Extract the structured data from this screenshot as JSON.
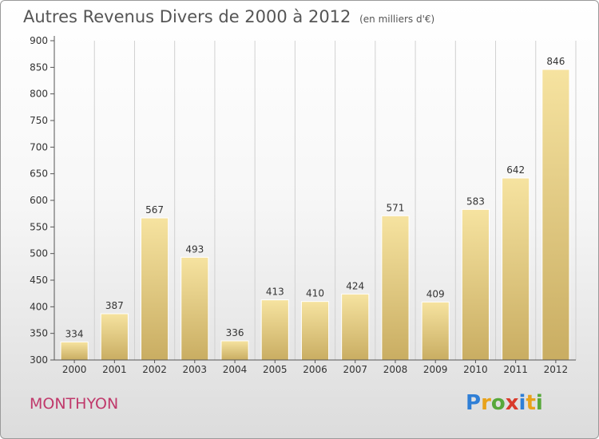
{
  "title": "Autres Revenus Divers de 2000 à 2012",
  "subtitle": "(en milliers d'€)",
  "commune": "MONTHYON",
  "logo": {
    "letters": [
      "P",
      "r",
      "o",
      "x",
      "i",
      "t",
      "i"
    ],
    "colors": [
      "#2f7fd6",
      "#e8a21a",
      "#57a83a",
      "#d93a2b",
      "#2f7fd6",
      "#e8a21a",
      "#57a83a"
    ]
  },
  "colors": {
    "bar_top": "#f6e3a0",
    "bar_bottom": "#c9ad62",
    "axis": "#555555",
    "grid": "#d0d0d0",
    "title": "#555555",
    "commune": "#c0396b"
  },
  "chart_data": {
    "type": "bar",
    "categories": [
      "2000",
      "2001",
      "2002",
      "2003",
      "2004",
      "2005",
      "2006",
      "2007",
      "2008",
      "2009",
      "2010",
      "2011",
      "2012"
    ],
    "values": [
      334,
      387,
      567,
      493,
      336,
      413,
      410,
      424,
      571,
      409,
      583,
      642,
      846
    ],
    "data_labels": [
      "334",
      "387",
      "567",
      "493",
      "336",
      "413",
      "410",
      "424",
      "571",
      "409",
      "583",
      "642",
      "846"
    ],
    "yticks": [
      300,
      350,
      400,
      450,
      500,
      550,
      600,
      650,
      700,
      750,
      800,
      850,
      900
    ],
    "ylim": [
      300,
      900
    ],
    "xlabel": "",
    "ylabel": "",
    "grid": "vertical"
  }
}
